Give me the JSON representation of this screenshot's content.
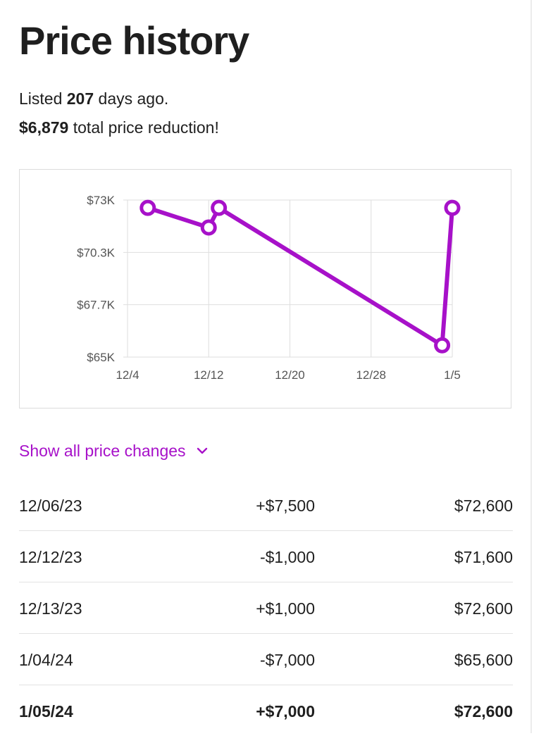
{
  "title": "Price history",
  "summary": {
    "listed_prefix": "Listed ",
    "listed_days": "207",
    "listed_suffix": " days ago.",
    "reduction_amount": "$6,879",
    "reduction_suffix": " total price reduction!"
  },
  "chart_data": {
    "type": "line",
    "x_tick_labels": [
      "12/4",
      "12/12",
      "12/20",
      "12/28",
      "1/5"
    ],
    "y_tick_labels": [
      "$73K",
      "$70.3K",
      "$67.7K",
      "$65K"
    ],
    "ylim": [
      65000,
      73000
    ],
    "grid": true,
    "series": [
      {
        "points": [
          {
            "x": "12/06/23",
            "y": 72600
          },
          {
            "x": "12/12/23",
            "y": 71600
          },
          {
            "x": "12/13/23",
            "y": 72600
          },
          {
            "x": "1/04/24",
            "y": 65600
          },
          {
            "x": "1/05/24",
            "y": 72600
          }
        ],
        "color": "#a711c9"
      }
    ]
  },
  "toggle": {
    "label": "Show all price changes",
    "icon": "chevron-down-icon",
    "color": "#a711c9"
  },
  "history": [
    {
      "date": "12/06/23",
      "change": "+$7,500",
      "price": "$72,600",
      "bold": false
    },
    {
      "date": "12/12/23",
      "change": "-$1,000",
      "price": "$71,600",
      "bold": false
    },
    {
      "date": "12/13/23",
      "change": "+$1,000",
      "price": "$72,600",
      "bold": false
    },
    {
      "date": "1/04/24",
      "change": "-$7,000",
      "price": "$65,600",
      "bold": false
    },
    {
      "date": "1/05/24",
      "change": "+$7,000",
      "price": "$72,600",
      "bold": true
    }
  ]
}
